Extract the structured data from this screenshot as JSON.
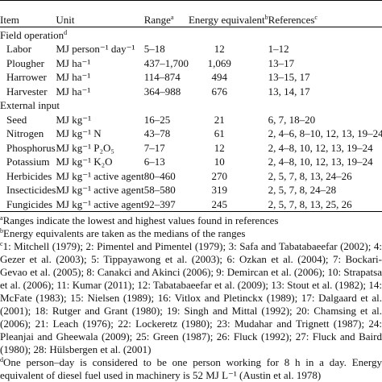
{
  "header": {
    "item": "Item",
    "unit": "Unit",
    "range": "Range",
    "range_sup": "a",
    "energy": "Energy equivalent",
    "energy_sup": "b",
    "references": "References",
    "references_sup": "c"
  },
  "sections": [
    {
      "title": "Field operation",
      "title_sup": "d",
      "rows": [
        {
          "item": "Labor",
          "unit": "MJ person⁻¹ day⁻¹",
          "range": "5–18",
          "energy": "12",
          "references": "1–12"
        },
        {
          "item": "Plougher",
          "unit": "MJ ha⁻¹",
          "range": "437–1,700",
          "energy": "1,069",
          "references": "13–17"
        },
        {
          "item": "Harrower",
          "unit": "MJ ha⁻¹",
          "range": "114–874",
          "energy": "494",
          "references": "13–15, 17"
        },
        {
          "item": "Harvester",
          "unit": "MJ ha⁻¹",
          "range": "364–988",
          "energy": "676",
          "references": "13, 14, 17"
        }
      ]
    },
    {
      "title": "External input",
      "rows": [
        {
          "item": "Seed",
          "unit": "MJ kg⁻¹",
          "range": "16–25",
          "energy": "21",
          "references": "6, 7, 18–20"
        },
        {
          "item": "Nitrogen",
          "unit": "MJ kg⁻¹ N",
          "range": "43–78",
          "energy": "61",
          "references": "2, 4–6, 8–10, 12, 13, 19–24"
        },
        {
          "item": "Phosphorus",
          "unit": "MJ kg⁻¹ P₂O₅",
          "range": "7–17",
          "energy": "12",
          "references": "2, 4–8, 10, 12, 13, 19–24"
        },
        {
          "item": "Potassium",
          "unit": "MJ kg⁻¹ K₂O",
          "range": "6–13",
          "energy": "10",
          "references": "2, 4–8, 10, 12, 13, 19–24"
        },
        {
          "item": "Herbicides",
          "unit": "MJ kg⁻¹ active agent",
          "range": "80–460",
          "energy": "270",
          "references": "2, 5, 7, 8, 13, 24–26"
        },
        {
          "item": "Insecticides",
          "unit": "MJ kg⁻¹ active agent",
          "range": "58–580",
          "energy": "319",
          "references": "2, 5, 7, 8, 24–28"
        },
        {
          "item": "Fungicides",
          "unit": "MJ kg⁻¹ active agent",
          "range": "92–397",
          "energy": "245",
          "references": "2, 5, 7, 8, 13, 25, 26"
        }
      ]
    }
  ],
  "footnotes": [
    {
      "mark": "a",
      "text": "Ranges indicate the lowest and highest values found in references"
    },
    {
      "mark": "b",
      "text": "Energy equivalents are taken as the medians of the ranges"
    },
    {
      "mark": "c",
      "text": "1: Mitchell (1979); 2: Pimentel and Pimentel (1979); 3: Safa and Tabatabaeefar (2002); 4: Gezer et al. (2003); 5: Tippayawong et al. (2003); 6: Ozkan et al. (2004); 7: Bockari-Gevao et al. (2005); 8: Canakci and Akinci (2006); 9: Demircan et al. (2006); 10: Strapatsa et al. (2006); 11: Kumar (2011); 12: Tabatabaeefar et al. (2009); 13: Stout et al. (1982); 14: McFate (1983); 15: Nielsen (1989); 16: Vitlox and Pletinckx (1989); 17: Dalgaard et al. (2001); 18: Rutger and Grant (1980); 19: Singh and Mittal (1992); 20: Chamsing et al. (2006); 21: Leach (1976); 22: Lockeretz (1980); 23: Mudahar and Trignett (1987); 24: Pleanjai and Gheewala (2009); 25: Green (1987); 26: Fluck (1992); 27: Fluck and Baird (1980); 28: Hülsbergen et al. (2001)"
    },
    {
      "mark": "d",
      "text": "One person–day is considered to be one person working for 8 h in a day. Energy equivalent of diesel fuel used in machinery is 52 MJ L⁻¹ (Austin et al. 1978)"
    }
  ]
}
